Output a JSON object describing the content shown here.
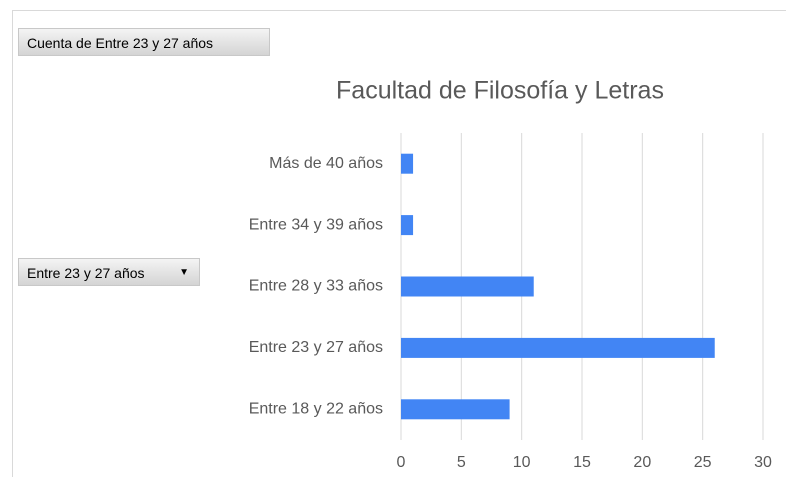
{
  "pivot_buttons": {
    "value_field": "Cuenta de Entre 23 y 27 años",
    "axis_field": "Entre 23 y 27 años"
  },
  "chart_data": {
    "type": "barh",
    "title": "Facultad de Filosofía y Letras",
    "categories": [
      "Más de 40 años",
      "Entre 34 y 39 años",
      "Entre 28 y 33 años",
      "Entre 23 y 27 años",
      "Entre 18 y 22 años"
    ],
    "values": [
      1,
      1,
      11,
      26,
      9
    ],
    "color": "#4285f4",
    "xlim": [
      0,
      30
    ],
    "xticks": [
      0,
      5,
      10,
      15,
      20,
      25,
      30
    ],
    "grid": true
  }
}
